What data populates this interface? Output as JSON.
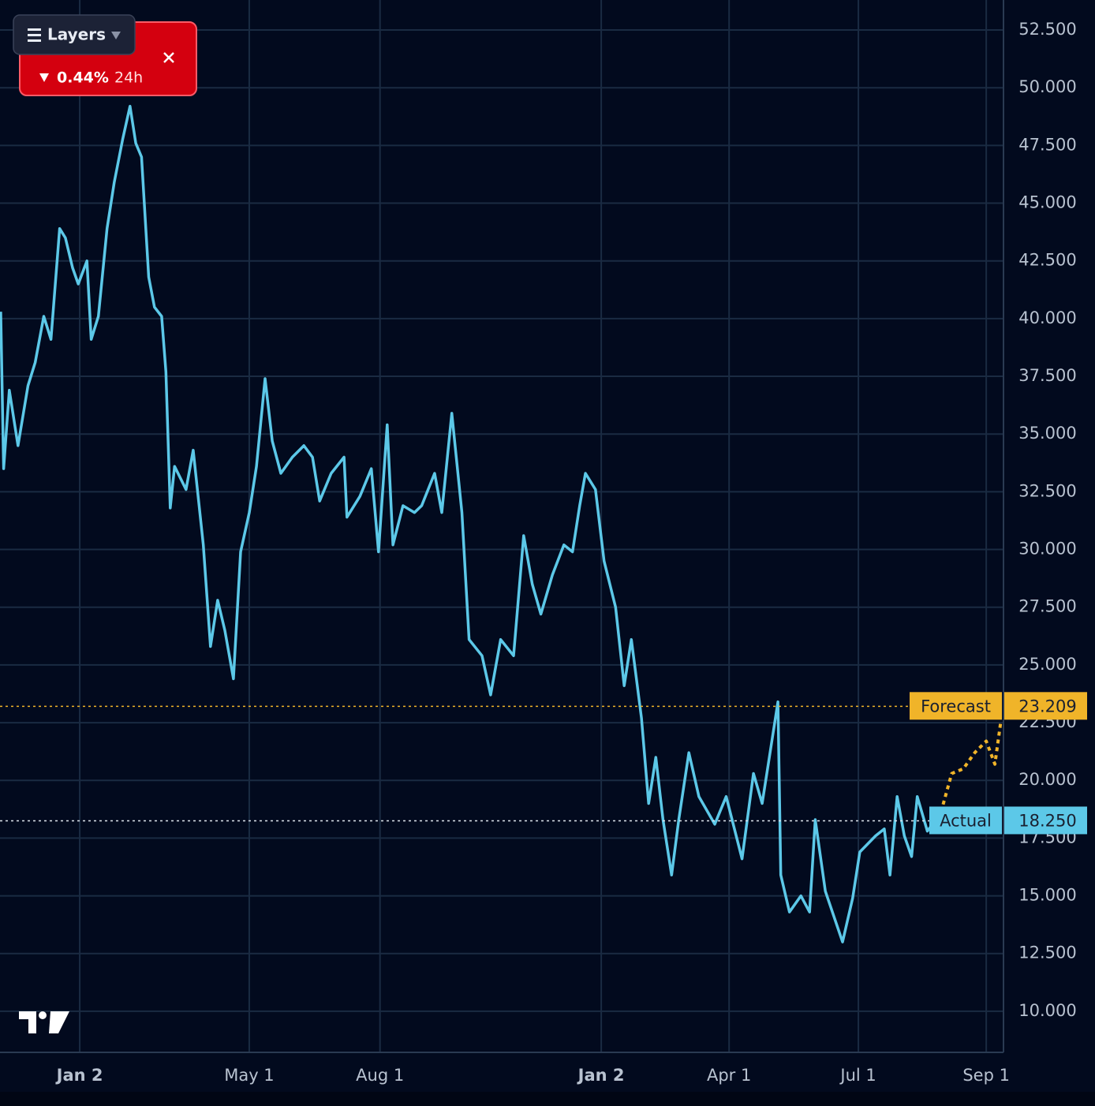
{
  "chart_data": {
    "type": "line",
    "xlim": [
      -55.5,
      643
    ],
    "ylim": [
      8.22,
      53.8
    ],
    "xticks": [
      {
        "value": 0,
        "label": "Jan 2",
        "bold": true
      },
      {
        "value": 118,
        "label": "May 1"
      },
      {
        "value": 209,
        "label": "Aug 1"
      },
      {
        "value": 363,
        "label": "Jan 2",
        "bold": true
      },
      {
        "value": 452,
        "label": "Apr 1"
      },
      {
        "value": 542,
        "label": "Jul 1"
      },
      {
        "value": 631,
        "label": "Sep 1"
      }
    ],
    "yticks": [
      {
        "value": 10,
        "label": "10.000"
      },
      {
        "value": 12.5,
        "label": "12.500"
      },
      {
        "value": 15,
        "label": "15.000"
      },
      {
        "value": 17.5,
        "label": "17.500"
      },
      {
        "value": 20,
        "label": "20.000"
      },
      {
        "value": 22.5,
        "label": "22.500"
      },
      {
        "value": 25,
        "label": "25.000"
      },
      {
        "value": 27.5,
        "label": "27.500"
      },
      {
        "value": 30,
        "label": "30.000"
      },
      {
        "value": 32.5,
        "label": "32.500"
      },
      {
        "value": 35,
        "label": "35.000"
      },
      {
        "value": 37.5,
        "label": "37.500"
      },
      {
        "value": 40,
        "label": "40.000"
      },
      {
        "value": 42.5,
        "label": "42.500"
      },
      {
        "value": 45,
        "label": "45.000"
      },
      {
        "value": 47.5,
        "label": "47.500"
      },
      {
        "value": 50,
        "label": "50.000"
      },
      {
        "value": 52.5,
        "label": "52.500"
      }
    ],
    "grid": true,
    "series": [
      {
        "name": "Actual",
        "color": "#5cc8e8",
        "dashed": false,
        "price_line": 18.25,
        "price_line_label": "18.250",
        "x": [
          -55,
          -53,
          -49,
          -43,
          -36,
          -31,
          -25,
          -20,
          -14,
          -10,
          -5,
          -1,
          5,
          8,
          13,
          19,
          24,
          30,
          35,
          39,
          43,
          48,
          52,
          57,
          60,
          63,
          66,
          74,
          79,
          86,
          91,
          96,
          101,
          107,
          112,
          118,
          123,
          129,
          134,
          140,
          148,
          156,
          162,
          167,
          175,
          184,
          186,
          195,
          203,
          208,
          214,
          218,
          225,
          233,
          238,
          247,
          252,
          259,
          266,
          271,
          280,
          286,
          293,
          302,
          309,
          315,
          321,
          329,
          337,
          343,
          348,
          352,
          359,
          365,
          373,
          379,
          384,
          391,
          396,
          401,
          406,
          412,
          417,
          424,
          431,
          442,
          450,
          461,
          469,
          475,
          480,
          486,
          488,
          494,
          502,
          508,
          512,
          519,
          531,
          538,
          543,
          554,
          560,
          564,
          569,
          574,
          579,
          583,
          590,
          596
        ],
        "values": [
          40.3,
          33.5,
          36.9,
          34.5,
          37.1,
          38.1,
          40.1,
          39.1,
          43.9,
          43.5,
          42.2,
          41.5,
          42.5,
          39.1,
          40.1,
          43.9,
          45.9,
          47.8,
          49.2,
          47.6,
          47.0,
          41.8,
          40.5,
          40.1,
          37.7,
          31.8,
          33.6,
          32.6,
          34.3,
          30.2,
          25.8,
          27.8,
          26.5,
          24.4,
          29.9,
          31.6,
          33.6,
          37.4,
          34.7,
          33.3,
          34.0,
          34.5,
          34.0,
          32.1,
          33.3,
          34.0,
          31.4,
          32.3,
          33.5,
          29.9,
          35.4,
          30.2,
          31.9,
          31.6,
          31.9,
          33.3,
          31.6,
          35.9,
          31.6,
          26.1,
          25.4,
          23.7,
          26.1,
          25.4,
          30.6,
          28.5,
          27.2,
          28.9,
          30.2,
          29.9,
          31.9,
          33.3,
          32.6,
          29.5,
          27.5,
          24.1,
          26.1,
          22.7,
          19.0,
          21.0,
          18.3,
          15.9,
          18.3,
          21.2,
          19.3,
          18.1,
          19.3,
          16.6,
          20.3,
          19.0,
          21.0,
          23.4,
          15.9,
          14.3,
          15.0,
          14.3,
          18.3,
          15.2,
          13.0,
          14.9,
          16.9,
          17.6,
          17.9,
          15.9,
          19.3,
          17.6,
          16.7,
          19.3,
          17.8,
          18.3
        ]
      },
      {
        "name": "Forecast",
        "color": "#f0b429",
        "dashed": true,
        "price_line": 23.209,
        "x": [
          598,
          607,
          615,
          623,
          631,
          637,
          641
        ],
        "values": [
          18.3,
          20.3,
          20.5,
          21.2,
          21.7,
          20.7,
          22.5
        ]
      }
    ]
  },
  "ui": {
    "layers_button": "Layers",
    "ticker_change": "0.44%",
    "ticker_period": "24h"
  }
}
